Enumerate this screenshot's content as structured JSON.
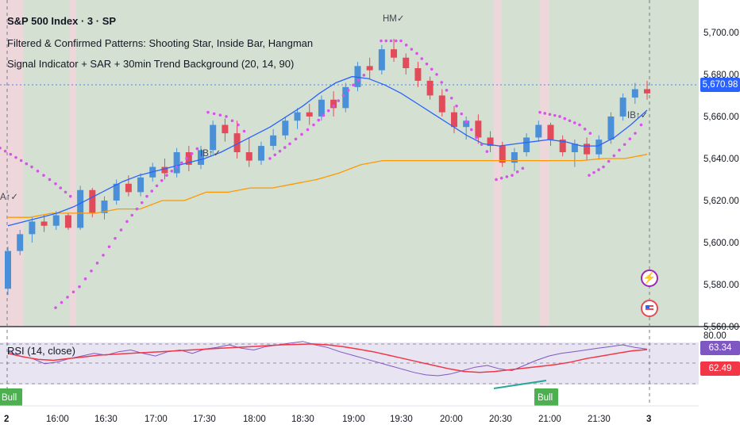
{
  "header": {
    "symbol_title": "S&P 500 Index · 3 · SP",
    "indicator_1": "Filtered & Confirmed Patterns: Shooting Star, Inside Bar, Hangman",
    "indicator_2": "Signal Indicator + SAR + 30min Trend Background (20, 14, 90)"
  },
  "price_axis": {
    "ticks": [
      "5,700.00",
      "5,680.00",
      "5,660.00",
      "5,640.00",
      "5,620.00",
      "5,600.00",
      "5,580.00",
      "5,560.00"
    ],
    "last_price": "5,670.98"
  },
  "rsi_pane": {
    "title": "RSI (14, close)",
    "top_tick": "80.00",
    "rsi_value": "63.34",
    "rsi_ma_value": "62.49"
  },
  "time_axis": {
    "ticks": [
      "2",
      "16:00",
      "16:30",
      "17:00",
      "17:30",
      "18:00",
      "18:30",
      "19:00",
      "19:30",
      "20:00",
      "20:30",
      "21:00",
      "21:30",
      "3"
    ]
  },
  "annotations": {
    "hm": "HM✓",
    "ib1": "IB↑✓",
    "ib2": "IB↑✓",
    "a_left": "A↑✓",
    "bull1": "Bull",
    "bull2": "Bull"
  },
  "colors": {
    "bull": "#4a90d9",
    "bear": "#e24b59",
    "sma": "#2962ff",
    "orange": "#ff9800",
    "sar": "#d654e8",
    "bg_green": "#d4e1d2",
    "bg_red": "#eed7da",
    "rsi": "#7e57c2",
    "rsi_ma": "#f23645",
    "last_price_badge": "#2962ff"
  },
  "chart_data": {
    "type": "candlestick",
    "ylim": [
      5560,
      5710
    ],
    "rsi_ylim": [
      20,
      80
    ],
    "candles_sampled": [
      [
        5578,
        5598,
        5575,
        5596
      ],
      [
        5596,
        5606,
        5594,
        5604
      ],
      [
        5604,
        5612,
        5600,
        5610
      ],
      [
        5610,
        5613,
        5605,
        5608
      ],
      [
        5608,
        5615,
        5606,
        5613
      ],
      [
        5613,
        5614,
        5606,
        5607
      ],
      [
        5607,
        5627,
        5606,
        5625
      ],
      [
        5625,
        5626,
        5612,
        5614
      ],
      [
        5614,
        5622,
        5611,
        5620
      ],
      [
        5620,
        5630,
        5618,
        5628
      ],
      [
        5628,
        5632,
        5622,
        5624
      ],
      [
        5624,
        5633,
        5622,
        5631
      ],
      [
        5631,
        5638,
        5629,
        5636
      ],
      [
        5636,
        5640,
        5630,
        5633
      ],
      [
        5633,
        5645,
        5631,
        5643
      ],
      [
        5643,
        5646,
        5634,
        5637
      ],
      [
        5637,
        5646,
        5635,
        5644
      ],
      [
        5644,
        5658,
        5642,
        5656
      ],
      [
        5656,
        5659,
        5648,
        5652
      ],
      [
        5652,
        5658,
        5640,
        5643
      ],
      [
        5643,
        5650,
        5636,
        5639
      ],
      [
        5639,
        5648,
        5637,
        5646
      ],
      [
        5646,
        5654,
        5644,
        5651
      ],
      [
        5651,
        5660,
        5649,
        5658
      ],
      [
        5658,
        5664,
        5654,
        5662
      ],
      [
        5662,
        5666,
        5656,
        5660
      ],
      [
        5660,
        5670,
        5658,
        5668
      ],
      [
        5668,
        5672,
        5660,
        5664
      ],
      [
        5664,
        5676,
        5662,
        5674
      ],
      [
        5674,
        5686,
        5672,
        5684
      ],
      [
        5684,
        5688,
        5678,
        5682
      ],
      [
        5682,
        5694,
        5680,
        5692
      ],
      [
        5692,
        5697,
        5686,
        5688
      ],
      [
        5688,
        5690,
        5680,
        5683
      ],
      [
        5683,
        5686,
        5674,
        5677
      ],
      [
        5677,
        5679,
        5668,
        5670
      ],
      [
        5670,
        5673,
        5660,
        5662
      ],
      [
        5662,
        5665,
        5652,
        5655
      ],
      [
        5655,
        5660,
        5649,
        5658
      ],
      [
        5658,
        5661,
        5647,
        5650
      ],
      [
        5650,
        5653,
        5643,
        5646
      ],
      [
        5646,
        5648,
        5636,
        5638
      ],
      [
        5638,
        5645,
        5634,
        5643
      ],
      [
        5643,
        5652,
        5641,
        5650
      ],
      [
        5650,
        5658,
        5648,
        5656
      ],
      [
        5656,
        5657,
        5646,
        5649
      ],
      [
        5649,
        5651,
        5641,
        5643
      ],
      [
        5643,
        5649,
        5636,
        5647
      ],
      [
        5647,
        5650,
        5639,
        5642
      ],
      [
        5642,
        5651,
        5640,
        5649
      ],
      [
        5649,
        5662,
        5647,
        5660
      ],
      [
        5660,
        5671,
        5658,
        5669
      ],
      [
        5669,
        5676,
        5666,
        5673
      ],
      [
        5673,
        5677,
        5668,
        5671
      ]
    ],
    "sma_sampled": [
      5608,
      5610,
      5612,
      5614,
      5617,
      5621,
      5625,
      5629,
      5632,
      5634,
      5636,
      5638,
      5640,
      5643,
      5647,
      5651,
      5655,
      5660,
      5665,
      5671,
      5676,
      5679,
      5678,
      5675,
      5671,
      5666,
      5661,
      5656,
      5651,
      5647,
      5646,
      5647,
      5648,
      5649,
      5648,
      5646,
      5646,
      5650,
      5656,
      5663
    ],
    "orange_sampled": [
      5612,
      5612,
      5614,
      5614,
      5614,
      5616,
      5616,
      5620,
      5620,
      5624,
      5624,
      5626,
      5626,
      5628,
      5630,
      5633,
      5637,
      5639,
      5639,
      5639,
      5639,
      5639,
      5639,
      5639,
      5639,
      5639,
      5639,
      5640,
      5640,
      5642
    ],
    "rsi_sampled": [
      60,
      55,
      52,
      46,
      48,
      52,
      55,
      58,
      56,
      60,
      62,
      58,
      55,
      60,
      62,
      58,
      63,
      65,
      68,
      64,
      62,
      66,
      68,
      70,
      72,
      68,
      65,
      60,
      56,
      52,
      48,
      44,
      40,
      36,
      33,
      32,
      34,
      38,
      42,
      44,
      40,
      38,
      44,
      50,
      55,
      58,
      60,
      62,
      64,
      66,
      68,
      65,
      63
    ],
    "rsi_ma_sampled": [
      58,
      54,
      51,
      50,
      52,
      54,
      56,
      57,
      58,
      59,
      60,
      61,
      62,
      63,
      64,
      65,
      66,
      67,
      68,
      68.5,
      69,
      68,
      66,
      63,
      60,
      56,
      52,
      48,
      44,
      40,
      37,
      36,
      37,
      39,
      41,
      43,
      45,
      48,
      52,
      55,
      58,
      61,
      62.5
    ]
  }
}
